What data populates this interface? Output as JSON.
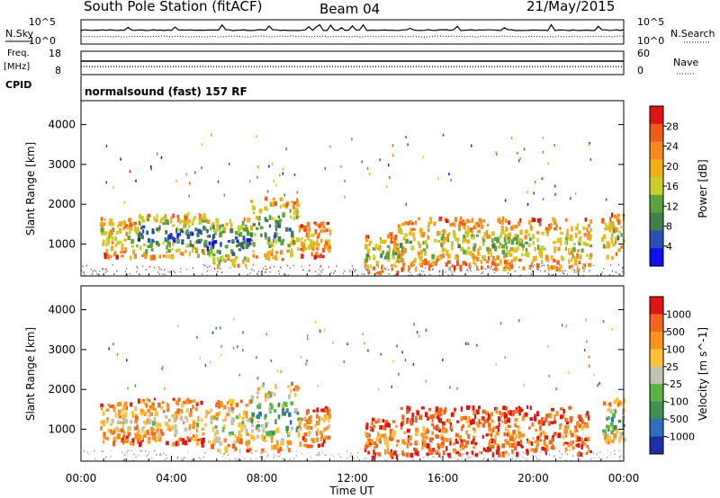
{
  "header": {
    "title": "South Pole Station (fitACF)",
    "beam": "Beam 04",
    "date": "21/May/2015"
  },
  "mini_panels": {
    "nsky_label": "N.Sky",
    "nsearch_label": "N.Search",
    "sky_ticks": [
      "10^5",
      "10^0"
    ],
    "search_ticks": [
      "10^5",
      "10^0"
    ],
    "freq_label": "Freq.",
    "freq_unit": "[MHz]",
    "freq_ticks": [
      "18",
      "8"
    ],
    "nave_label": "Nave",
    "nave_ticks": [
      "60",
      "0"
    ],
    "cpid_label": "CPID",
    "cpid_text": "normalsound (fast) 157 RF"
  },
  "x_axis": {
    "label": "Time UT",
    "ticks": [
      "00:00",
      "04:00",
      "08:00",
      "12:00",
      "16:00",
      "20:00",
      "00:00"
    ]
  },
  "chart_data": [
    {
      "type": "heatmap",
      "panel": "power",
      "ylabel": "Slant Range [km]",
      "xlabel": "Time UT",
      "ylim": [
        200,
        4600
      ],
      "yticks": [
        1000,
        2000,
        3000,
        4000
      ],
      "xlim_hours": [
        0,
        24
      ],
      "colorbar": {
        "label": "Power [dB]",
        "ticks": [
          "28",
          "24",
          "20",
          "16",
          "12",
          "8",
          "4"
        ],
        "colors": [
          "#1010ee",
          "#2a4fb5",
          "#3f7f4a",
          "#5ca33e",
          "#c8cf2a",
          "#f2b018",
          "#f7871e",
          "#f25a1c",
          "#e01414"
        ]
      },
      "echo_regions": [
        {
          "t": [
            0.8,
            2.5
          ],
          "range": [
            700,
            1700
          ],
          "level": 0.55
        },
        {
          "t": [
            2.5,
            5.5
          ],
          "range": [
            700,
            1800
          ],
          "level": 0.85
        },
        {
          "t": [
            5.5,
            7.5
          ],
          "range": [
            500,
            1700
          ],
          "level": 0.9
        },
        {
          "t": [
            7.5,
            9.6
          ],
          "range": [
            650,
            2200
          ],
          "level": 0.75
        },
        {
          "t": [
            9.6,
            11.0
          ],
          "range": [
            700,
            1600
          ],
          "level": 0.4
        },
        {
          "t": [
            12.5,
            14.0
          ],
          "range": [
            300,
            1300
          ],
          "level": 0.6
        },
        {
          "t": [
            14.0,
            22.5
          ],
          "range": [
            400,
            1700
          ],
          "level": 0.55
        },
        {
          "t": [
            23.0,
            24.0
          ],
          "range": [
            700,
            1800
          ],
          "level": 0.55
        }
      ]
    },
    {
      "type": "heatmap",
      "panel": "velocity",
      "ylabel": "Slant Range [km]",
      "xlabel": "Time UT",
      "ylim": [
        200,
        4600
      ],
      "yticks": [
        1000,
        2000,
        3000,
        4000
      ],
      "xlim_hours": [
        0,
        24
      ],
      "colorbar": {
        "label": "Velocity [m s^-1]",
        "ticks": [
          "1000",
          "500",
          "100",
          "25",
          "-25",
          "-100",
          "-500",
          "-1000"
        ],
        "colors": [
          "#1a2fa8",
          "#2f6fbf",
          "#3e8f52",
          "#58b542",
          "#c2c2b2",
          "#ffc236",
          "#f7931e",
          "#f0641e",
          "#e01414"
        ]
      },
      "echo_regions": [
        {
          "t": [
            0.8,
            2.5
          ],
          "range": [
            700,
            1700
          ],
          "level": 0.4
        },
        {
          "t": [
            2.5,
            5.5
          ],
          "range": [
            650,
            1800
          ],
          "level": 0.45
        },
        {
          "t": [
            5.5,
            7.5
          ],
          "range": [
            500,
            1800
          ],
          "level": 0.55
        },
        {
          "t": [
            7.5,
            9.6
          ],
          "range": [
            500,
            2200
          ],
          "level": 0.75
        },
        {
          "t": [
            9.6,
            11.0
          ],
          "range": [
            600,
            1600
          ],
          "level": 0.35
        },
        {
          "t": [
            12.5,
            14.0
          ],
          "range": [
            300,
            1300
          ],
          "level": 0.3
        },
        {
          "t": [
            14.0,
            22.5
          ],
          "range": [
            400,
            1600
          ],
          "level": 0.25
        },
        {
          "t": [
            23.0,
            24.0
          ],
          "range": [
            700,
            1800
          ],
          "level": 0.7
        }
      ]
    }
  ]
}
